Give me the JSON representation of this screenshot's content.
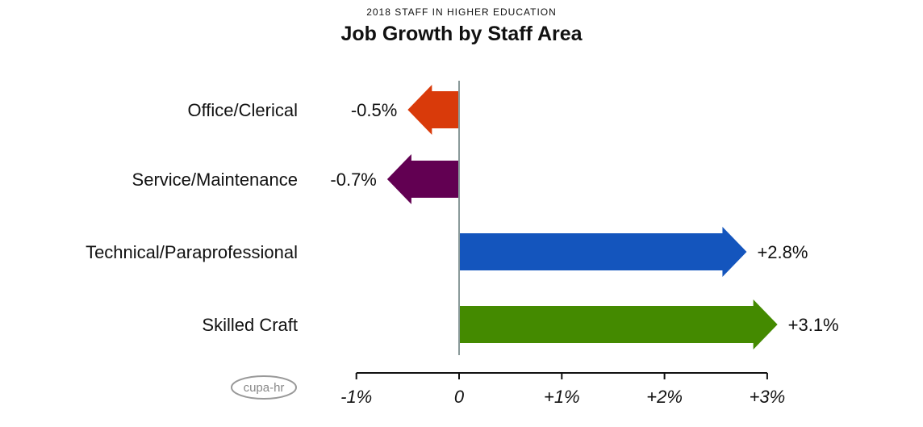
{
  "chart_data": {
    "type": "bar",
    "orientation": "horizontal",
    "subtitle": "2018 STAFF IN HIGHER EDUCATION",
    "title": "Job Growth by Staff Area",
    "categories": [
      "Office/Clerical",
      "Service/Maintenance",
      "Technical/Paraprofessional",
      "Skilled Craft"
    ],
    "values": [
      -0.5,
      -0.7,
      2.8,
      3.1
    ],
    "value_labels": [
      "-0.5%",
      "-0.7%",
      "+2.8%",
      "+3.1%"
    ],
    "colors": [
      "#D93A0A",
      "#620052",
      "#1455BD",
      "#448A00"
    ],
    "xlim": [
      -1,
      3
    ],
    "xticks": [
      -1,
      0,
      1,
      2,
      3
    ],
    "xtick_labels": [
      "-1%",
      "0",
      "+1%",
      "+2%",
      "+3%"
    ],
    "xlabel": "",
    "ylabel": "",
    "grid": false
  },
  "logo": "cupa-hr"
}
